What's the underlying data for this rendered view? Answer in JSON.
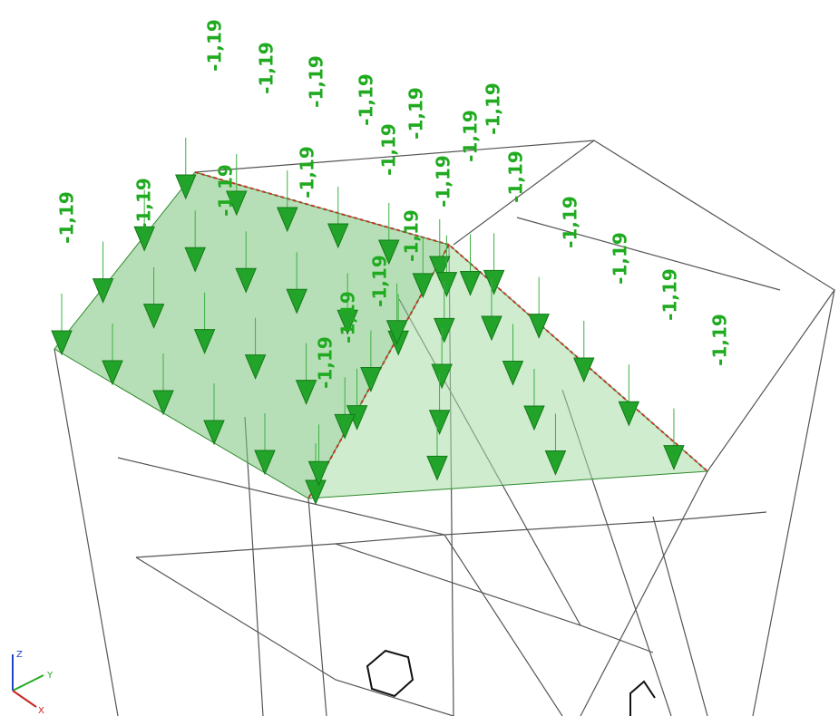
{
  "load_labels": [
    "-1,19",
    "-1,19",
    "-1,19",
    "-1,19",
    "-1,19",
    "-1,19",
    "-1,19",
    "-1,19",
    "-1,19",
    "-1,19",
    "-1,19",
    "-1,19",
    "-1,19",
    "-1,19",
    "-1,19",
    "-1,19",
    "-1,19",
    "-1,19",
    "-1,19",
    "-1,19",
    "-1,19",
    "-1,19"
  ],
  "axes": {
    "z": "Z",
    "y": "Y",
    "x": "X"
  }
}
